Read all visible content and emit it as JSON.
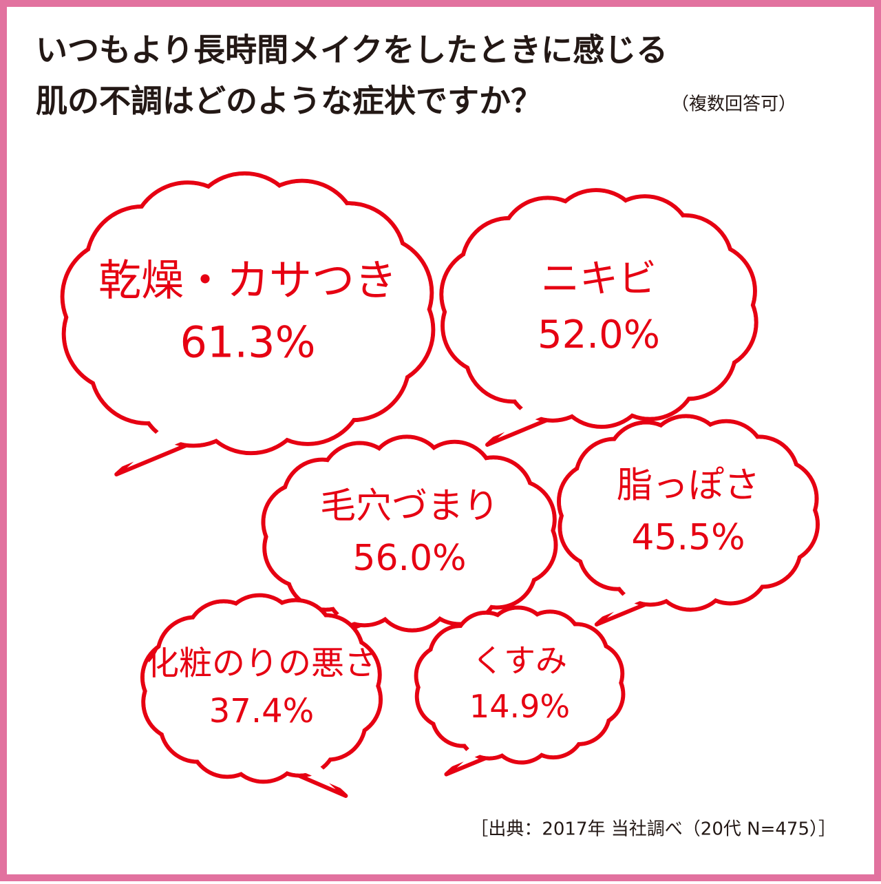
{
  "title": [
    "いつもより長時間メイクをしたときに感じる",
    "肌の不調はどのような症状ですか？"
  ],
  "note": "（複数回答可）",
  "items": [
    {
      "label": "乾燥・カサつき",
      "value": "61.3%"
    },
    {
      "label": "ニキビ",
      "value": "52.0%"
    },
    {
      "label": "脂っぽさ",
      "value": "45.5%"
    },
    {
      "label": "毛穴づまり",
      "value": "56.0%"
    },
    {
      "label": "化粧のりの悪さ",
      "value": "37.4%"
    },
    {
      "label": "くすみ",
      "value": "14.9%"
    }
  ],
  "source": "［出典：2017年 当社調べ（20代 N=475）］"
}
